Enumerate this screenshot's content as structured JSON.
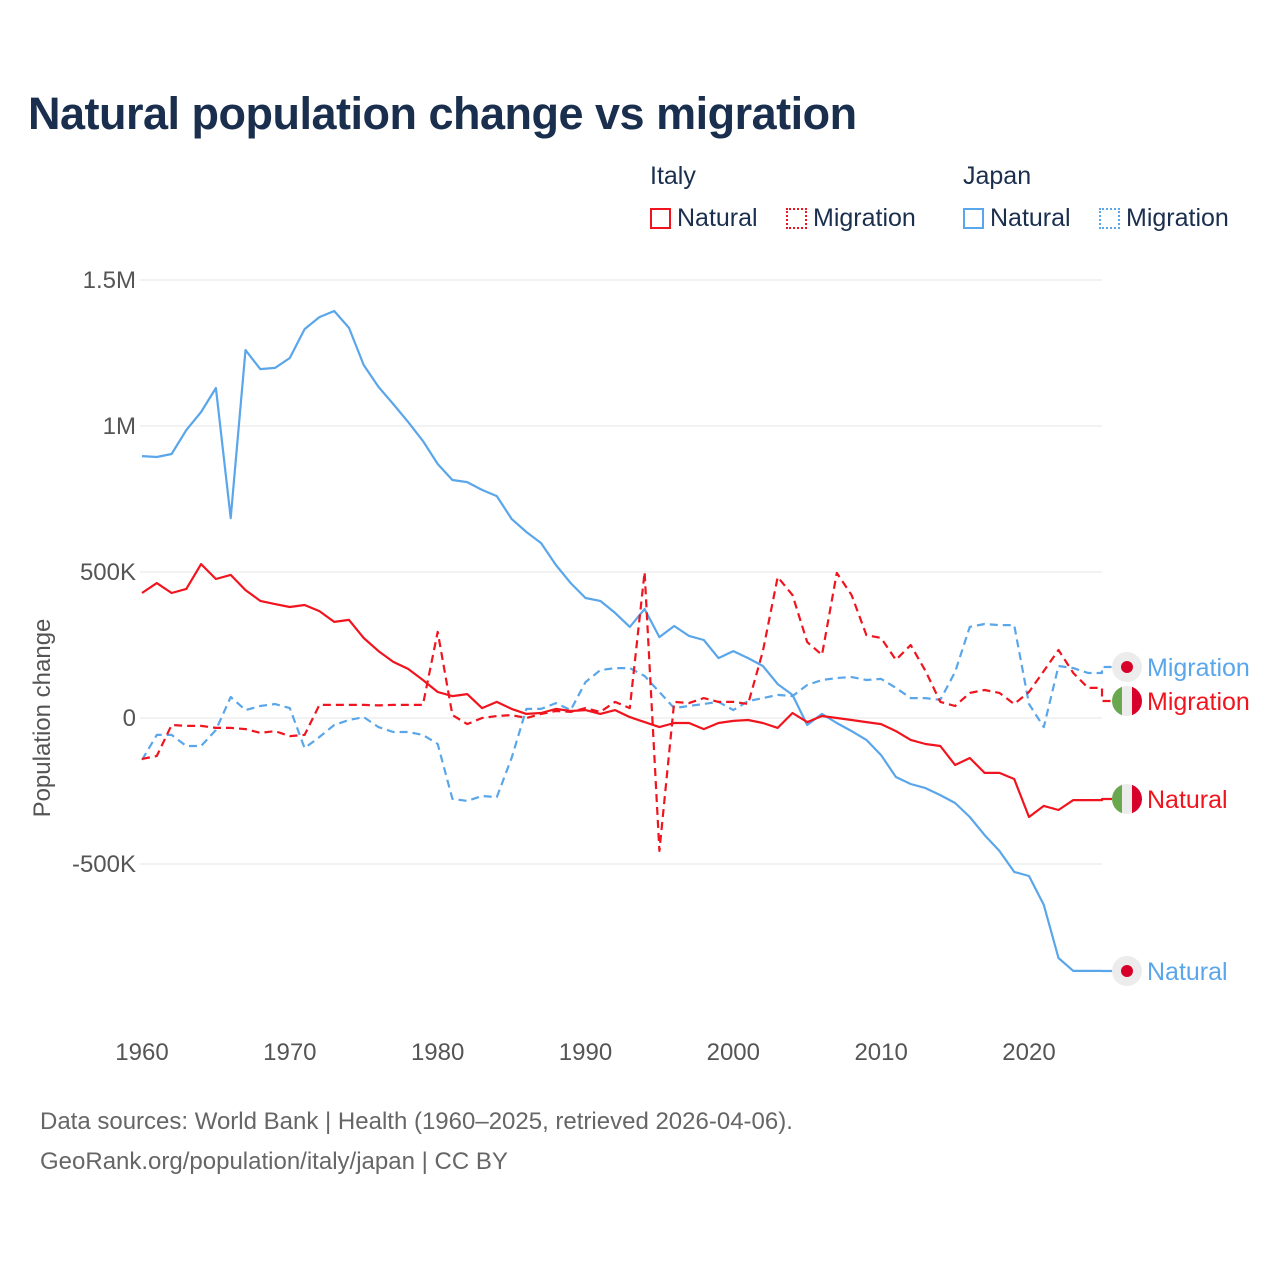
{
  "chart_data": {
    "type": "line",
    "title": "Natural population change vs migration",
    "ylabel": "Population change",
    "xlabel": "",
    "ylim": [
      -1000000,
      1500000
    ],
    "xlim": [
      1960,
      2025
    ],
    "grid": true,
    "legend_position": "top-right",
    "x_ticks": [
      "1960",
      "1970",
      "1980",
      "1990",
      "2000",
      "2010",
      "2020"
    ],
    "y_ticks": [
      {
        "v": 1500000,
        "label": "1.5M"
      },
      {
        "v": 1000000,
        "label": "1M"
      },
      {
        "v": 500000,
        "label": "500K"
      },
      {
        "v": 0,
        "label": "0"
      },
      {
        "v": -500000,
        "label": "-500K"
      }
    ],
    "x_start": 1960,
    "series": [
      {
        "name": "Japan Natural",
        "country": "Japan",
        "kind": "Natural",
        "color": "#5aa6ea",
        "dashed": false,
        "end_label": "Natural",
        "values": [
          897,
          894,
          904,
          986,
          1048,
          1130,
          685,
          1260,
          1195,
          1199,
          1233,
          1332,
          1373,
          1394,
          1336,
          1209,
          1134,
          1075,
          1014,
          949,
          870,
          815,
          808,
          781,
          760,
          682,
          637,
          599,
          524,
          462,
          411,
          401,
          360,
          312,
          373,
          277,
          315,
          281,
          267,
          205,
          229,
          205,
          178,
          116,
          79,
          -24,
          14,
          -17,
          -45,
          -75,
          -127,
          -202,
          -226,
          -240,
          -264,
          -291,
          -339,
          -401,
          -455,
          -527,
          -541,
          -640,
          -822,
          -866,
          -866
        ]
      },
      {
        "name": "Japan Migration",
        "country": "Japan",
        "kind": "Migration",
        "color": "#5aa6ea",
        "dashed": true,
        "end_label": "Migration",
        "values": [
          -144,
          -58,
          -58,
          -96,
          -96,
          -41,
          72,
          27,
          41,
          48,
          34,
          -103,
          -65,
          -24,
          -7,
          3,
          -31,
          -48,
          -48,
          -58,
          -89,
          -277,
          -284,
          -267,
          -271,
          -137,
          31,
          31,
          51,
          27,
          123,
          164,
          171,
          171,
          144,
          89,
          34,
          41,
          48,
          55,
          27,
          58,
          68,
          79,
          75,
          113,
          130,
          137,
          140,
          130,
          134,
          103,
          68,
          68,
          62,
          158,
          312,
          322,
          318,
          318,
          48,
          -31,
          178,
          171,
          154
        ]
      },
      {
        "name": "Italy Natural",
        "country": "Italy",
        "kind": "Natural",
        "color": "#f0141e",
        "dashed": false,
        "end_label": "Natural",
        "values": [
          428,
          462,
          428,
          442,
          527,
          476,
          490,
          438,
          401,
          390,
          380,
          387,
          366,
          329,
          336,
          274,
          229,
          192,
          168,
          130,
          89,
          75,
          82,
          34,
          55,
          31,
          14,
          17,
          31,
          24,
          27,
          14,
          27,
          3,
          -14,
          -31,
          -17,
          -17,
          -38,
          -17,
          -10,
          -7,
          -17,
          -34,
          17,
          -14,
          7,
          0,
          -7,
          -14,
          -21,
          -45,
          -75,
          -89,
          -96,
          -161,
          -137,
          -188,
          -188,
          -209,
          -339,
          -301,
          -315,
          -281,
          -281
        ]
      },
      {
        "name": "Italy Migration",
        "country": "Italy",
        "kind": "Migration",
        "color": "#f0141e",
        "dashed": true,
        "end_label": "Migration",
        "values": [
          -140,
          -130,
          -24,
          -27,
          -27,
          -34,
          -34,
          -38,
          -51,
          -45,
          -62,
          -58,
          45,
          45,
          45,
          45,
          43,
          45,
          45,
          45,
          295,
          10,
          -21,
          0,
          7,
          10,
          0,
          14,
          24,
          21,
          34,
          21,
          55,
          34,
          500,
          -455,
          55,
          51,
          68,
          55,
          55,
          48,
          229,
          483,
          421,
          260,
          216,
          497,
          421,
          284,
          274,
          199,
          250,
          161,
          55,
          41,
          86,
          96,
          86,
          48,
          89,
          161,
          233,
          154,
          103
        ]
      }
    ],
    "values_unit": "thousands"
  },
  "legend": {
    "italy": "Italy",
    "japan": "Japan",
    "natural": "Natural",
    "migration": "Migration"
  },
  "footer": {
    "line1": "Data sources: World Bank | Health (1960–2025, retrieved 2026-04-06).",
    "line2": "GeoRank.org/population/italy/japan | CC BY"
  },
  "colors": {
    "italy": "#f0141e",
    "japan": "#5aa6ea",
    "title": "#1a2e4d"
  }
}
